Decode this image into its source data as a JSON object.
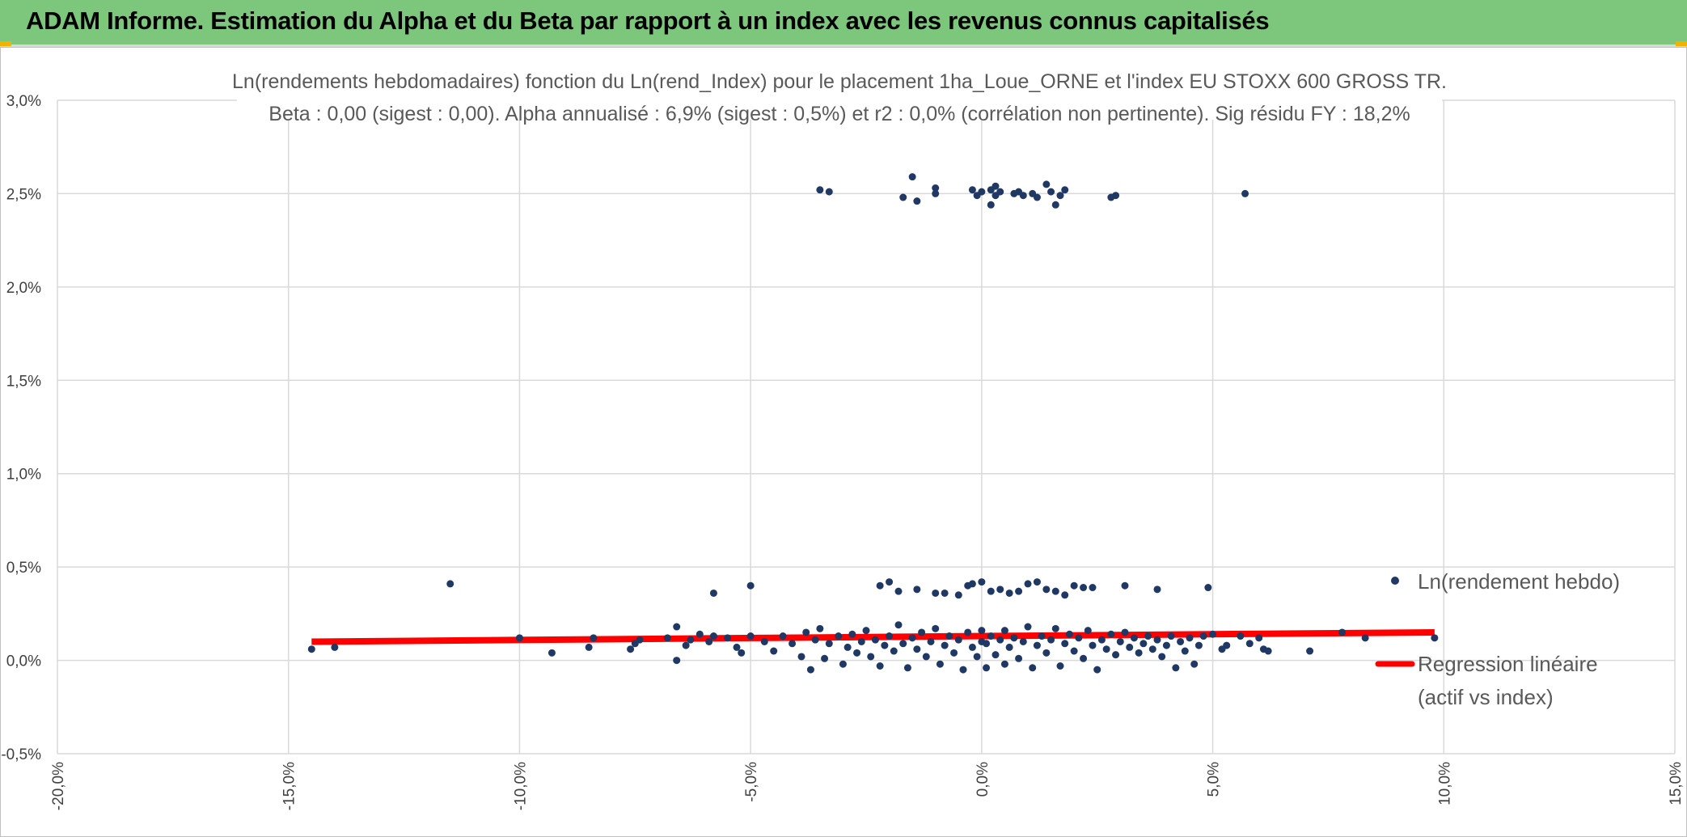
{
  "banner": {
    "title": "ADAM Informe. Estimation du Alpha et du Beta par rapport à un index avec les revenus connus capitalisés"
  },
  "colors": {
    "banner": "#7dc77d",
    "points": "#203864",
    "regression": "#ff0000",
    "grid": "#d9d9d9"
  },
  "chart_data": {
    "type": "scatter",
    "title": "Ln(rendements hebdomadaires) fonction du Ln(rend_Index) pour le placement 1ha_Loue_ORNE et l'index EU STOXX 600 GROSS TR.",
    "subtitle": "Beta : 0,00 (sigest : 0,00). Alpha annualisé : 6,9% (sigest : 0,5%) et r2 : 0,0% (corrélation non pertinente). Sig résidu FY : 18,2%",
    "xlabel": "",
    "ylabel": "",
    "xlim": [
      -0.2,
      0.15
    ],
    "ylim": [
      -0.005,
      0.03
    ],
    "x_ticks": [
      -0.2,
      -0.15,
      -0.1,
      -0.05,
      0.0,
      0.05,
      0.1,
      0.15
    ],
    "y_ticks": [
      -0.005,
      0.0,
      0.005,
      0.01,
      0.015,
      0.02,
      0.025,
      0.03
    ],
    "x_tick_labels": [
      "-20,0%",
      "-15,0%",
      "-10,0%",
      "-5,0%",
      "0,0%",
      "5,0%",
      "10,0%",
      "15,0%"
    ],
    "y_tick_labels": [
      "-0,5%",
      "0,0%",
      "0,5%",
      "1,0%",
      "1,5%",
      "2,0%",
      "2,5%",
      "3,0%"
    ],
    "grid": true,
    "legend_position": "right",
    "series": [
      {
        "name": "Ln(rendement hebdo)",
        "type": "scatter",
        "points": [
          [
            -0.035,
            0.0252
          ],
          [
            -0.033,
            0.0251
          ],
          [
            -0.017,
            0.0248
          ],
          [
            -0.014,
            0.0246
          ],
          [
            -0.015,
            0.0259
          ],
          [
            -0.01,
            0.025
          ],
          [
            -0.01,
            0.0253
          ],
          [
            -0.002,
            0.0252
          ],
          [
            -0.001,
            0.0249
          ],
          [
            0.0,
            0.0251
          ],
          [
            0.002,
            0.0252
          ],
          [
            0.002,
            0.0244
          ],
          [
            0.003,
            0.0249
          ],
          [
            0.003,
            0.0254
          ],
          [
            0.004,
            0.0251
          ],
          [
            0.007,
            0.025
          ],
          [
            0.008,
            0.0251
          ],
          [
            0.009,
            0.0249
          ],
          [
            0.011,
            0.025
          ],
          [
            0.012,
            0.0248
          ],
          [
            0.014,
            0.0255
          ],
          [
            0.015,
            0.0251
          ],
          [
            0.016,
            0.0244
          ],
          [
            0.017,
            0.0249
          ],
          [
            0.018,
            0.0252
          ],
          [
            0.028,
            0.0248
          ],
          [
            0.029,
            0.0249
          ],
          [
            0.057,
            0.025
          ],
          [
            -0.115,
            0.0041
          ],
          [
            -0.058,
            0.0036
          ],
          [
            -0.05,
            0.004
          ],
          [
            -0.022,
            0.004
          ],
          [
            -0.02,
            0.0042
          ],
          [
            -0.018,
            0.0037
          ],
          [
            -0.014,
            0.0038
          ],
          [
            -0.01,
            0.0036
          ],
          [
            -0.008,
            0.0036
          ],
          [
            -0.005,
            0.0035
          ],
          [
            -0.003,
            0.004
          ],
          [
            -0.002,
            0.0041
          ],
          [
            0.0,
            0.0042
          ],
          [
            0.002,
            0.0037
          ],
          [
            0.004,
            0.0038
          ],
          [
            0.006,
            0.0036
          ],
          [
            0.008,
            0.0037
          ],
          [
            0.01,
            0.0041
          ],
          [
            0.012,
            0.0042
          ],
          [
            0.014,
            0.0038
          ],
          [
            0.016,
            0.0037
          ],
          [
            0.018,
            0.0035
          ],
          [
            0.02,
            0.004
          ],
          [
            0.022,
            0.0039
          ],
          [
            0.024,
            0.0039
          ],
          [
            0.031,
            0.004
          ],
          [
            0.038,
            0.0038
          ],
          [
            0.049,
            0.0039
          ],
          [
            -0.145,
            0.0006
          ],
          [
            -0.14,
            0.0007
          ],
          [
            -0.1,
            0.0012
          ],
          [
            -0.093,
            0.0004
          ],
          [
            -0.085,
            0.0007
          ],
          [
            -0.084,
            0.0012
          ],
          [
            -0.076,
            0.0006
          ],
          [
            -0.075,
            0.0009
          ],
          [
            -0.074,
            0.0011
          ],
          [
            -0.068,
            0.0012
          ],
          [
            -0.066,
            0.0018
          ],
          [
            -0.066,
            0.0
          ],
          [
            -0.064,
            0.0008
          ],
          [
            -0.063,
            0.0011
          ],
          [
            -0.061,
            0.0014
          ],
          [
            -0.059,
            0.001
          ],
          [
            -0.058,
            0.0013
          ],
          [
            -0.055,
            0.0012
          ],
          [
            -0.053,
            0.0007
          ],
          [
            -0.052,
            0.0004
          ],
          [
            -0.05,
            0.0013
          ],
          [
            -0.047,
            0.001
          ],
          [
            -0.045,
            0.0005
          ],
          [
            -0.043,
            0.0013
          ],
          [
            -0.041,
            0.0009
          ],
          [
            -0.039,
            0.0002
          ],
          [
            -0.038,
            0.0015
          ],
          [
            -0.037,
            -0.0005
          ],
          [
            -0.036,
            0.0011
          ],
          [
            -0.035,
            0.0017
          ],
          [
            -0.034,
            0.0001
          ],
          [
            -0.033,
            0.0009
          ],
          [
            -0.031,
            0.0013
          ],
          [
            -0.03,
            -0.0002
          ],
          [
            -0.029,
            0.0007
          ],
          [
            -0.028,
            0.0014
          ],
          [
            -0.027,
            0.0004
          ],
          [
            -0.026,
            0.001
          ],
          [
            -0.025,
            0.0016
          ],
          [
            -0.024,
            0.0002
          ],
          [
            -0.023,
            0.0011
          ],
          [
            -0.022,
            -0.0003
          ],
          [
            -0.021,
            0.0008
          ],
          [
            -0.02,
            0.0013
          ],
          [
            -0.019,
            0.0005
          ],
          [
            -0.018,
            0.0019
          ],
          [
            -0.017,
            0.0009
          ],
          [
            -0.016,
            -0.0004
          ],
          [
            -0.015,
            0.0012
          ],
          [
            -0.014,
            0.0006
          ],
          [
            -0.013,
            0.0015
          ],
          [
            -0.012,
            0.0002
          ],
          [
            -0.011,
            0.001
          ],
          [
            -0.01,
            0.0017
          ],
          [
            -0.009,
            -0.0002
          ],
          [
            -0.008,
            0.0008
          ],
          [
            -0.007,
            0.0013
          ],
          [
            -0.006,
            0.0004
          ],
          [
            -0.005,
            0.0011
          ],
          [
            -0.004,
            -0.0005
          ],
          [
            -0.003,
            0.0015
          ],
          [
            -0.002,
            0.0007
          ],
          [
            -0.001,
            0.0002
          ],
          [
            0.0,
            0.001
          ],
          [
            0.0,
            0.0016
          ],
          [
            0.001,
            -0.0004
          ],
          [
            0.001,
            0.0009
          ],
          [
            0.002,
            0.0013
          ],
          [
            0.003,
            0.0003
          ],
          [
            0.004,
            0.0011
          ],
          [
            0.005,
            -0.0002
          ],
          [
            0.005,
            0.0016
          ],
          [
            0.006,
            0.0007
          ],
          [
            0.007,
            0.0012
          ],
          [
            0.008,
            0.0001
          ],
          [
            0.009,
            0.001
          ],
          [
            0.01,
            0.0018
          ],
          [
            0.011,
            -0.0004
          ],
          [
            0.012,
            0.0008
          ],
          [
            0.013,
            0.0013
          ],
          [
            0.014,
            0.0004
          ],
          [
            0.015,
            0.0011
          ],
          [
            0.016,
            0.0017
          ],
          [
            0.017,
            -0.0003
          ],
          [
            0.018,
            0.0009
          ],
          [
            0.019,
            0.0014
          ],
          [
            0.02,
            0.0005
          ],
          [
            0.021,
            0.0012
          ],
          [
            0.022,
            0.0001
          ],
          [
            0.023,
            0.0016
          ],
          [
            0.024,
            0.0008
          ],
          [
            0.025,
            -0.0005
          ],
          [
            0.026,
            0.0011
          ],
          [
            0.027,
            0.0006
          ],
          [
            0.028,
            0.0014
          ],
          [
            0.029,
            0.0003
          ],
          [
            0.03,
            0.001
          ],
          [
            0.031,
            0.0015
          ],
          [
            0.032,
            0.0007
          ],
          [
            0.033,
            0.0012
          ],
          [
            0.034,
            0.0004
          ],
          [
            0.035,
            0.0009
          ],
          [
            0.036,
            0.0013
          ],
          [
            0.037,
            0.0006
          ],
          [
            0.038,
            0.0011
          ],
          [
            0.039,
            0.0002
          ],
          [
            0.04,
            0.0008
          ],
          [
            0.041,
            0.0013
          ],
          [
            0.042,
            -0.0004
          ],
          [
            0.043,
            0.001
          ],
          [
            0.044,
            0.0005
          ],
          [
            0.045,
            0.0012
          ],
          [
            0.046,
            -0.0002
          ],
          [
            0.047,
            0.0008
          ],
          [
            0.048,
            0.0013
          ],
          [
            0.05,
            0.0014
          ],
          [
            0.052,
            0.0006
          ],
          [
            0.053,
            0.0008
          ],
          [
            0.056,
            0.0013
          ],
          [
            0.058,
            0.0009
          ],
          [
            0.06,
            0.0012
          ],
          [
            0.061,
            0.0006
          ],
          [
            0.062,
            0.0005
          ],
          [
            0.071,
            0.0005
          ],
          [
            0.078,
            0.0015
          ],
          [
            0.083,
            0.0012
          ],
          [
            0.098,
            0.0012
          ]
        ]
      },
      {
        "name": "Regression linéaire\n(actif vs index)",
        "type": "line",
        "points": [
          [
            -0.145,
            0.001
          ],
          [
            0.098,
            0.0015
          ]
        ]
      }
    ]
  },
  "legend": {
    "items": [
      {
        "label": "Ln(rendement hebdo)"
      },
      {
        "line1": "Regression linéaire",
        "line2": "(actif vs index)"
      }
    ]
  }
}
